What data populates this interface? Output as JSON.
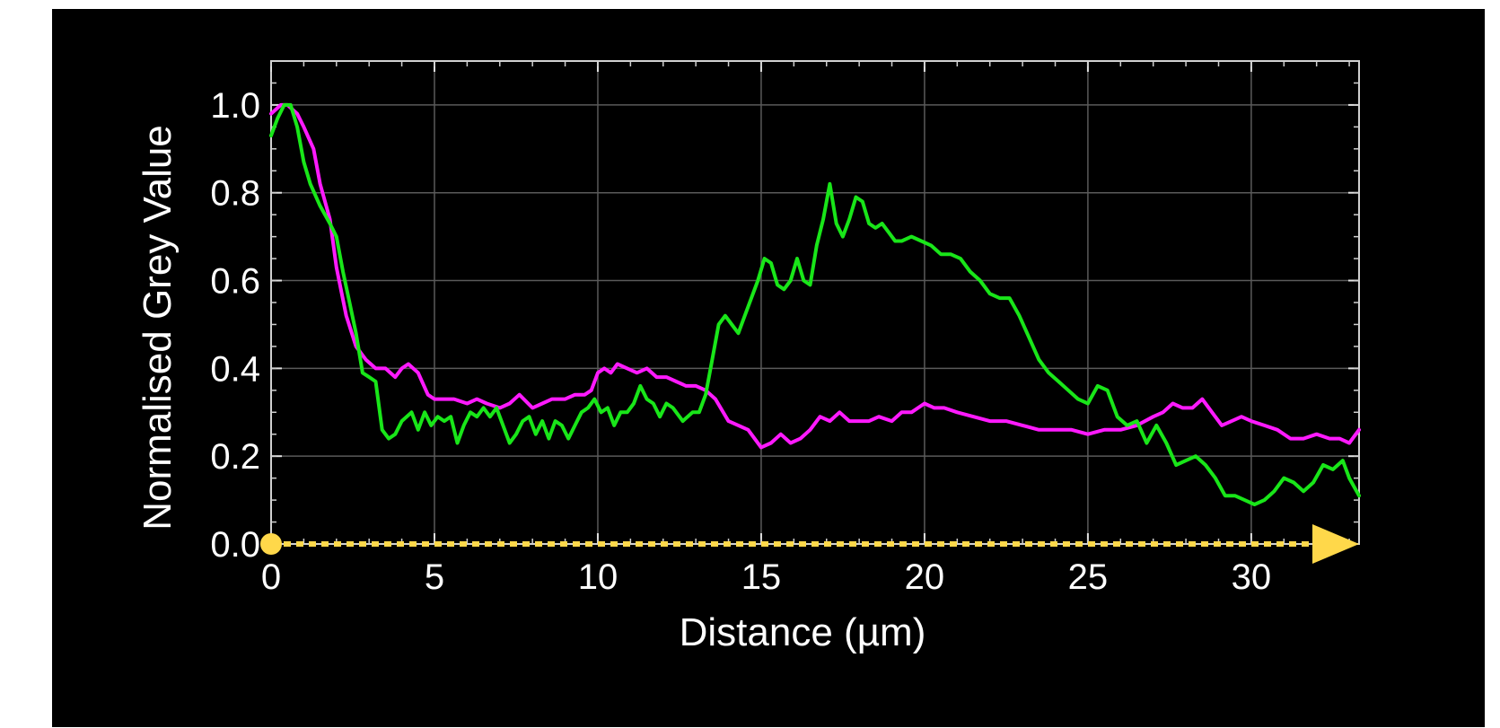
{
  "chart_data": {
    "type": "line",
    "title": "",
    "xlabel": "Distance (µm)",
    "ylabel": "Normalised Grey Value",
    "xlim": [
      0,
      33.3
    ],
    "ylim": [
      0,
      1.1
    ],
    "x_ticks": [
      0,
      5,
      10,
      15,
      20,
      25,
      30
    ],
    "x_tick_labels": [
      "0",
      "5",
      "10",
      "15",
      "20",
      "25",
      "30"
    ],
    "y_ticks": [
      0,
      0.2,
      0.4,
      0.6,
      0.8,
      1.0
    ],
    "y_tick_labels": [
      "0.0",
      "0.2",
      "0.4",
      "0.6",
      "0.8",
      "1.0"
    ],
    "grid": true,
    "background": "#000000",
    "series": [
      {
        "color": "#ff1aff",
        "x": [
          0,
          0.3,
          0.5,
          0.8,
          1.0,
          1.3,
          1.5,
          1.8,
          2.0,
          2.3,
          2.6,
          2.9,
          3.2,
          3.5,
          3.8,
          4.0,
          4.2,
          4.5,
          4.8,
          5.0,
          5.3,
          5.6,
          6.0,
          6.3,
          6.6,
          7.0,
          7.3,
          7.6,
          8.0,
          8.3,
          8.6,
          9.0,
          9.3,
          9.6,
          9.8,
          10.0,
          10.2,
          10.4,
          10.6,
          10.9,
          11.2,
          11.5,
          11.8,
          12.1,
          12.4,
          12.7,
          13.0,
          13.3,
          13.6,
          14.0,
          14.3,
          14.6,
          15.0,
          15.3,
          15.6,
          15.9,
          16.2,
          16.5,
          16.8,
          17.1,
          17.4,
          17.7,
          18.0,
          18.3,
          18.6,
          19.0,
          19.3,
          19.6,
          20.0,
          20.3,
          20.6,
          21.0,
          21.5,
          22.0,
          22.5,
          23.0,
          23.5,
          24.0,
          24.5,
          25.0,
          25.5,
          26.0,
          26.5,
          27.0,
          27.3,
          27.6,
          27.9,
          28.2,
          28.5,
          28.8,
          29.1,
          29.4,
          29.7,
          30.0,
          30.4,
          30.8,
          31.2,
          31.6,
          32.0,
          32.4,
          32.7,
          33.0,
          33.3
        ],
        "y": [
          0.98,
          1.0,
          1.0,
          0.98,
          0.95,
          0.9,
          0.82,
          0.74,
          0.63,
          0.52,
          0.45,
          0.42,
          0.4,
          0.4,
          0.38,
          0.4,
          0.41,
          0.39,
          0.34,
          0.33,
          0.33,
          0.33,
          0.32,
          0.33,
          0.32,
          0.31,
          0.32,
          0.34,
          0.31,
          0.32,
          0.33,
          0.33,
          0.34,
          0.34,
          0.35,
          0.39,
          0.4,
          0.39,
          0.41,
          0.4,
          0.39,
          0.4,
          0.38,
          0.38,
          0.37,
          0.36,
          0.36,
          0.35,
          0.33,
          0.28,
          0.27,
          0.26,
          0.22,
          0.23,
          0.25,
          0.23,
          0.24,
          0.26,
          0.29,
          0.28,
          0.3,
          0.28,
          0.28,
          0.28,
          0.29,
          0.28,
          0.3,
          0.3,
          0.32,
          0.31,
          0.31,
          0.3,
          0.29,
          0.28,
          0.28,
          0.27,
          0.26,
          0.26,
          0.26,
          0.25,
          0.26,
          0.26,
          0.27,
          0.29,
          0.3,
          0.32,
          0.31,
          0.31,
          0.33,
          0.3,
          0.27,
          0.28,
          0.29,
          0.28,
          0.27,
          0.26,
          0.24,
          0.24,
          0.25,
          0.24,
          0.24,
          0.23,
          0.26
        ]
      },
      {
        "color": "#19e619",
        "x": [
          0,
          0.2,
          0.4,
          0.6,
          0.8,
          1.0,
          1.2,
          1.5,
          1.8,
          2.0,
          2.2,
          2.4,
          2.6,
          2.8,
          3.0,
          3.2,
          3.4,
          3.6,
          3.8,
          4.0,
          4.3,
          4.5,
          4.7,
          4.9,
          5.1,
          5.3,
          5.5,
          5.7,
          5.9,
          6.1,
          6.3,
          6.5,
          6.7,
          6.9,
          7.1,
          7.3,
          7.5,
          7.7,
          7.9,
          8.1,
          8.3,
          8.5,
          8.7,
          8.9,
          9.1,
          9.3,
          9.5,
          9.7,
          9.9,
          10.1,
          10.3,
          10.5,
          10.7,
          10.9,
          11.1,
          11.3,
          11.5,
          11.7,
          11.9,
          12.1,
          12.3,
          12.6,
          12.9,
          13.1,
          13.3,
          13.5,
          13.7,
          13.9,
          14.1,
          14.3,
          14.5,
          14.7,
          14.9,
          15.1,
          15.3,
          15.5,
          15.7,
          15.9,
          16.1,
          16.3,
          16.5,
          16.7,
          16.9,
          17.1,
          17.3,
          17.5,
          17.7,
          17.9,
          18.1,
          18.3,
          18.5,
          18.7,
          18.9,
          19.1,
          19.3,
          19.6,
          19.9,
          20.2,
          20.5,
          20.8,
          21.1,
          21.4,
          21.7,
          22.0,
          22.3,
          22.6,
          22.9,
          23.2,
          23.5,
          23.8,
          24.1,
          24.4,
          24.7,
          25.0,
          25.3,
          25.6,
          25.9,
          26.2,
          26.5,
          26.8,
          27.1,
          27.4,
          27.7,
          28.0,
          28.3,
          28.6,
          28.9,
          29.2,
          29.5,
          29.8,
          30.1,
          30.4,
          30.7,
          31.0,
          31.3,
          31.6,
          31.9,
          32.2,
          32.5,
          32.8,
          33.0,
          33.3
        ],
        "y": [
          0.93,
          0.97,
          1.0,
          1.0,
          0.95,
          0.87,
          0.82,
          0.77,
          0.73,
          0.7,
          0.62,
          0.55,
          0.48,
          0.39,
          0.38,
          0.37,
          0.26,
          0.24,
          0.25,
          0.28,
          0.3,
          0.26,
          0.3,
          0.27,
          0.29,
          0.28,
          0.29,
          0.23,
          0.27,
          0.3,
          0.29,
          0.31,
          0.29,
          0.31,
          0.27,
          0.23,
          0.25,
          0.28,
          0.29,
          0.25,
          0.28,
          0.24,
          0.28,
          0.27,
          0.24,
          0.27,
          0.3,
          0.31,
          0.33,
          0.3,
          0.31,
          0.27,
          0.3,
          0.3,
          0.32,
          0.36,
          0.33,
          0.32,
          0.29,
          0.32,
          0.31,
          0.28,
          0.3,
          0.3,
          0.34,
          0.42,
          0.5,
          0.52,
          0.5,
          0.48,
          0.52,
          0.56,
          0.6,
          0.65,
          0.64,
          0.59,
          0.58,
          0.6,
          0.65,
          0.6,
          0.59,
          0.68,
          0.74,
          0.82,
          0.73,
          0.7,
          0.74,
          0.79,
          0.78,
          0.73,
          0.72,
          0.73,
          0.71,
          0.69,
          0.69,
          0.7,
          0.69,
          0.68,
          0.66,
          0.66,
          0.65,
          0.62,
          0.6,
          0.57,
          0.56,
          0.56,
          0.52,
          0.47,
          0.42,
          0.39,
          0.37,
          0.35,
          0.33,
          0.32,
          0.36,
          0.35,
          0.29,
          0.27,
          0.28,
          0.23,
          0.27,
          0.23,
          0.18,
          0.19,
          0.2,
          0.18,
          0.15,
          0.11,
          0.11,
          0.1,
          0.09,
          0.1,
          0.12,
          0.15,
          0.14,
          0.12,
          0.14,
          0.18,
          0.17,
          0.19,
          0.15,
          0.11
        ]
      }
    ],
    "profile_marker": {
      "color": "#ffd84a",
      "y": 0,
      "x_start": 0,
      "x_end": 33.3
    }
  }
}
